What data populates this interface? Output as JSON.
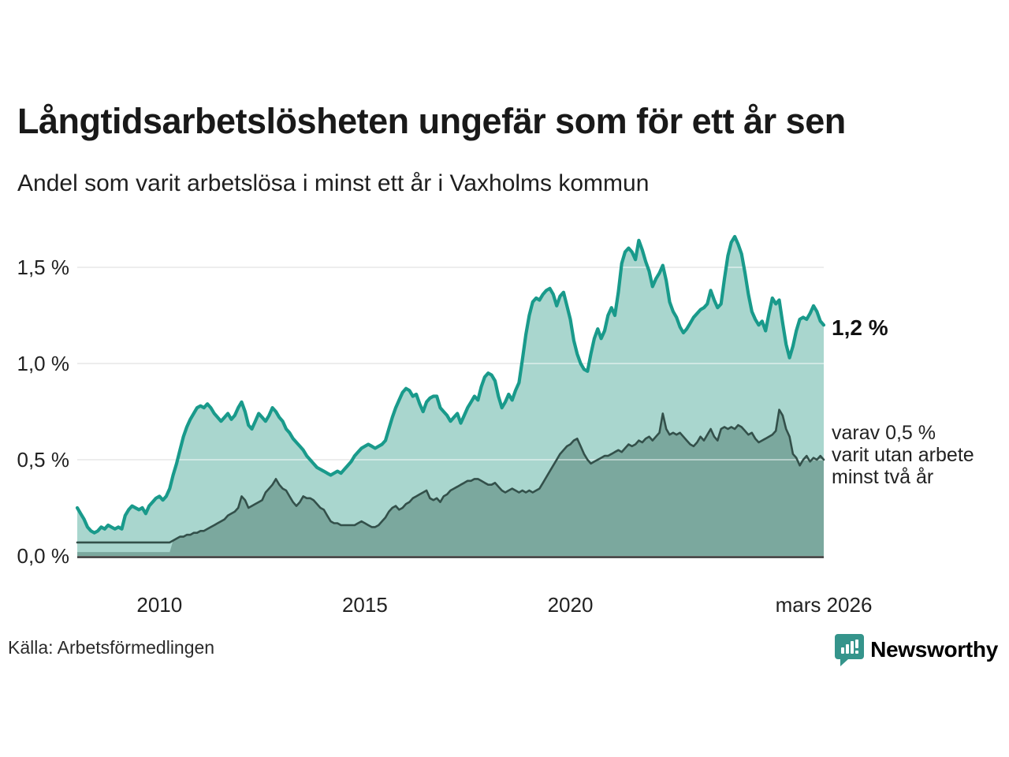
{
  "header": {
    "title": "Långtidsarbetslösheten ungefär som för ett år sen",
    "subtitle": "Andel som varit arbetslösa i minst ett år i Vaxholms kommun"
  },
  "annotations": {
    "series1_value": "1,2 %",
    "series2_label": [
      "varav 0,5 %",
      "varit utan arbete",
      "minst två år"
    ]
  },
  "footer": {
    "source": "Källa: Arbetsförmedlingen",
    "brand": "Newsworthy",
    "brand_logo_icon": "bar-chart-speech-bubble"
  },
  "colors": {
    "series1_line": "#199a8b",
    "series1_fill": "#a9d6ce",
    "series2_line": "#33504a",
    "series2_fill": "#7ba89e",
    "gridline": "#dfdfdf",
    "gridline_overlay": "rgba(255,255,255,0.45)",
    "axis_line": "#333333",
    "brand_teal": "#35948b",
    "text_dark": "#191919"
  },
  "chart_data": {
    "type": "area",
    "title": "Långtidsarbetslösheten ungefär som för ett år sen",
    "subtitle": "Andel som varit arbetslösa i minst ett år i Vaxholms kommun",
    "x_start": "2008-01",
    "x_end": "2026-03",
    "x_unit": "month",
    "ylabel": "",
    "ylim": [
      0,
      1.7
    ],
    "grid": "horizontal",
    "legend_position": "right-annotations",
    "y_ticks": [
      {
        "label": "1,5 %",
        "value": 1.5
      },
      {
        "label": "1,0 %",
        "value": 1.0
      },
      {
        "label": "0,5 %",
        "value": 0.5
      },
      {
        "label": "0,0 %",
        "value": 0.0
      }
    ],
    "y_gridlines": [
      0.5,
      1.0,
      1.5
    ],
    "x_ticks": [
      {
        "label": "2010",
        "month_index": 24
      },
      {
        "label": "2015",
        "month_index": 84
      },
      {
        "label": "2020",
        "month_index": 144
      },
      {
        "label": "mars 2026",
        "month_index": 218
      }
    ],
    "series": [
      {
        "name": "Andel som varit arbetslösa i minst ett år",
        "end_value_label": "1,2 %",
        "values": [
          0.25,
          0.22,
          0.19,
          0.15,
          0.13,
          0.12,
          0.13,
          0.15,
          0.14,
          0.16,
          0.15,
          0.14,
          0.15,
          0.14,
          0.21,
          0.24,
          0.26,
          0.25,
          0.24,
          0.25,
          0.22,
          0.26,
          0.28,
          0.3,
          0.31,
          0.29,
          0.31,
          0.35,
          0.42,
          0.48,
          0.55,
          0.62,
          0.67,
          0.71,
          0.74,
          0.77,
          0.78,
          0.77,
          0.79,
          0.77,
          0.74,
          0.72,
          0.7,
          0.72,
          0.74,
          0.71,
          0.73,
          0.77,
          0.8,
          0.75,
          0.68,
          0.66,
          0.7,
          0.74,
          0.72,
          0.7,
          0.73,
          0.77,
          0.75,
          0.72,
          0.7,
          0.66,
          0.64,
          0.61,
          0.59,
          0.57,
          0.55,
          0.52,
          0.5,
          0.48,
          0.46,
          0.45,
          0.44,
          0.43,
          0.42,
          0.43,
          0.44,
          0.43,
          0.45,
          0.47,
          0.49,
          0.52,
          0.54,
          0.56,
          0.57,
          0.58,
          0.57,
          0.56,
          0.57,
          0.58,
          0.6,
          0.66,
          0.72,
          0.77,
          0.81,
          0.85,
          0.87,
          0.86,
          0.83,
          0.84,
          0.79,
          0.75,
          0.8,
          0.82,
          0.83,
          0.83,
          0.77,
          0.75,
          0.73,
          0.7,
          0.72,
          0.74,
          0.69,
          0.73,
          0.77,
          0.8,
          0.83,
          0.81,
          0.88,
          0.93,
          0.95,
          0.94,
          0.91,
          0.83,
          0.77,
          0.8,
          0.84,
          0.81,
          0.86,
          0.9,
          1.02,
          1.15,
          1.25,
          1.32,
          1.34,
          1.33,
          1.36,
          1.38,
          1.39,
          1.36,
          1.3,
          1.35,
          1.37,
          1.3,
          1.23,
          1.12,
          1.05,
          1.0,
          0.97,
          0.96,
          1.05,
          1.13,
          1.18,
          1.13,
          1.17,
          1.25,
          1.29,
          1.25,
          1.37,
          1.52,
          1.58,
          1.6,
          1.58,
          1.54,
          1.64,
          1.59,
          1.53,
          1.48,
          1.4,
          1.44,
          1.47,
          1.51,
          1.43,
          1.32,
          1.27,
          1.24,
          1.19,
          1.16,
          1.18,
          1.21,
          1.24,
          1.26,
          1.28,
          1.29,
          1.31,
          1.38,
          1.33,
          1.29,
          1.31,
          1.44,
          1.56,
          1.63,
          1.66,
          1.62,
          1.57,
          1.47,
          1.36,
          1.27,
          1.23,
          1.2,
          1.22,
          1.17,
          1.26,
          1.34,
          1.31,
          1.33,
          1.21,
          1.1,
          1.03,
          1.09,
          1.17,
          1.23,
          1.24,
          1.23,
          1.26,
          1.3,
          1.27,
          1.22,
          1.2
        ]
      },
      {
        "name": "varav utan arbete minst två år",
        "end_value_label": "0,5 %",
        "fill_start_index": 28,
        "fill_baseline_value": 0.02,
        "values": [
          0.07,
          0.07,
          0.07,
          0.07,
          0.07,
          0.07,
          0.07,
          0.07,
          0.07,
          0.07,
          0.07,
          0.07,
          0.07,
          0.07,
          0.07,
          0.07,
          0.07,
          0.07,
          0.07,
          0.07,
          0.07,
          0.07,
          0.07,
          0.07,
          0.07,
          0.07,
          0.07,
          0.07,
          0.08,
          0.09,
          0.1,
          0.1,
          0.11,
          0.11,
          0.12,
          0.12,
          0.13,
          0.13,
          0.14,
          0.15,
          0.16,
          0.17,
          0.18,
          0.19,
          0.21,
          0.22,
          0.23,
          0.25,
          0.31,
          0.29,
          0.25,
          0.26,
          0.27,
          0.28,
          0.29,
          0.33,
          0.35,
          0.37,
          0.4,
          0.37,
          0.35,
          0.34,
          0.31,
          0.28,
          0.26,
          0.28,
          0.31,
          0.3,
          0.3,
          0.29,
          0.27,
          0.25,
          0.24,
          0.21,
          0.18,
          0.17,
          0.17,
          0.16,
          0.16,
          0.16,
          0.16,
          0.16,
          0.17,
          0.18,
          0.17,
          0.16,
          0.15,
          0.15,
          0.16,
          0.18,
          0.2,
          0.23,
          0.25,
          0.26,
          0.24,
          0.25,
          0.27,
          0.28,
          0.3,
          0.31,
          0.32,
          0.33,
          0.34,
          0.3,
          0.29,
          0.3,
          0.28,
          0.31,
          0.32,
          0.34,
          0.35,
          0.36,
          0.37,
          0.38,
          0.39,
          0.39,
          0.4,
          0.4,
          0.39,
          0.38,
          0.37,
          0.37,
          0.38,
          0.36,
          0.34,
          0.33,
          0.34,
          0.35,
          0.34,
          0.33,
          0.34,
          0.33,
          0.34,
          0.33,
          0.34,
          0.35,
          0.38,
          0.41,
          0.44,
          0.47,
          0.5,
          0.53,
          0.55,
          0.57,
          0.58,
          0.6,
          0.61,
          0.57,
          0.53,
          0.5,
          0.48,
          0.49,
          0.5,
          0.51,
          0.52,
          0.52,
          0.53,
          0.54,
          0.55,
          0.54,
          0.56,
          0.58,
          0.57,
          0.58,
          0.6,
          0.59,
          0.61,
          0.62,
          0.6,
          0.62,
          0.64,
          0.74,
          0.66,
          0.63,
          0.64,
          0.63,
          0.64,
          0.62,
          0.6,
          0.58,
          0.57,
          0.59,
          0.62,
          0.6,
          0.63,
          0.66,
          0.62,
          0.6,
          0.66,
          0.67,
          0.66,
          0.67,
          0.66,
          0.68,
          0.67,
          0.65,
          0.63,
          0.64,
          0.61,
          0.59,
          0.6,
          0.61,
          0.62,
          0.63,
          0.65,
          0.76,
          0.73,
          0.66,
          0.62,
          0.53,
          0.51,
          0.47,
          0.5,
          0.52,
          0.49,
          0.51,
          0.5,
          0.52,
          0.5
        ]
      }
    ]
  }
}
